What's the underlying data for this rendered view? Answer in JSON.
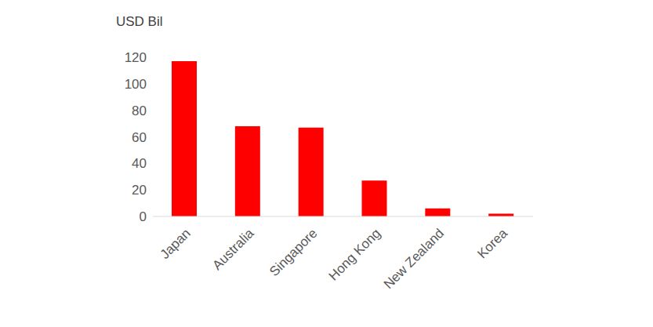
{
  "chart_data": {
    "type": "bar",
    "y_label": "USD Bil",
    "categories": [
      "Japan",
      "Australia",
      "Singapore",
      "Hong Kong",
      "New Zealand",
      "Korea"
    ],
    "values": [
      117,
      68,
      67,
      27,
      6,
      2
    ],
    "color": "#ff0000",
    "ylim": [
      0,
      120
    ],
    "yticks": [
      0,
      20,
      40,
      60,
      80,
      100,
      120
    ],
    "grid": false
  }
}
